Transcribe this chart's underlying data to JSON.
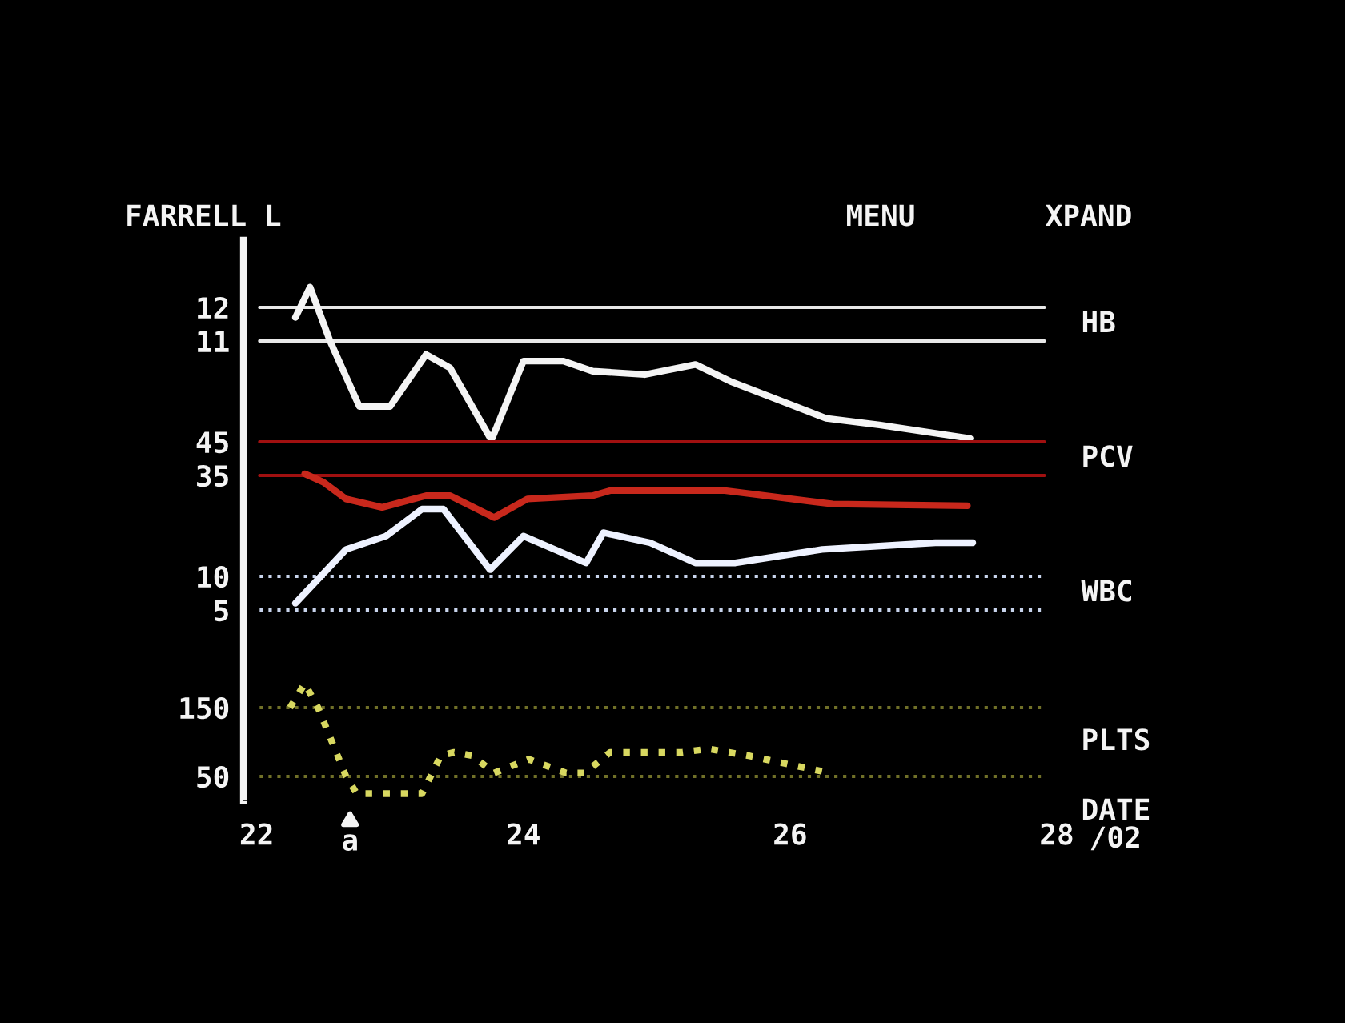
{
  "chart_data": [
    {
      "type": "line",
      "title": "FARRELL L",
      "annotations": [
        "MENU",
        "XPAND"
      ],
      "xlim": [
        21.9,
        28
      ],
      "tick_labels": "y",
      "ylim": [
        -2.67,
        14
      ],
      "yticks": [
        11,
        12
      ],
      "grid": false,
      "legend": false,
      "x": [
        22.29,
        22.4,
        22.55,
        22.77,
        23.0,
        23.27,
        23.45,
        23.76,
        24.0,
        24.3,
        24.52,
        24.91,
        25.29,
        25.55,
        26.27,
        26.67,
        27.35
      ],
      "series": [
        {
          "name": "HB",
          "color": "#f4f4f4",
          "values": [
            11.7,
            12.6,
            11.0,
            9.05,
            9.05,
            10.6,
            10.2,
            8.05,
            10.4,
            10.4,
            10.1,
            10.0,
            10.3,
            9.8,
            8.7,
            8.5,
            8.1
          ]
        }
      ],
      "ref_lines": [
        {
          "axis": "y",
          "value": 12,
          "color": "#e8e8e8"
        },
        {
          "axis": "y",
          "value": 11,
          "color": "#e8e8e8"
        }
      ]
    },
    {
      "type": "line",
      "xlim": [
        21.9,
        28
      ],
      "tick_labels": "y",
      "ylim": [
        -61.67,
        105
      ],
      "yticks": [
        35,
        45
      ],
      "grid": false,
      "legend": false,
      "x": [
        22.36,
        22.5,
        22.67,
        22.94,
        23.27,
        23.45,
        23.78,
        24.03,
        24.52,
        24.65,
        25.51,
        25.81,
        26.32,
        27.33
      ],
      "series": [
        {
          "name": "PCV",
          "color": "#c8281c",
          "values": [
            35.5,
            33,
            28,
            25.5,
            29,
            29,
            22.5,
            28,
            29,
            30.5,
            30.5,
            29,
            26.5,
            26
          ]
        }
      ],
      "ref_lines": [
        {
          "axis": "y",
          "value": 45,
          "color": "#a01010"
        },
        {
          "axis": "y",
          "value": 35,
          "color": "#a01010"
        }
      ]
    },
    {
      "type": "line",
      "xlim": [
        21.9,
        28
      ],
      "tick_labels": "y",
      "ylim": [
        -23.33,
        60
      ],
      "yticks": [
        5,
        10
      ],
      "grid": false,
      "legend": false,
      "x": [
        22.29,
        22.67,
        22.97,
        23.24,
        23.4,
        23.75,
        24.0,
        24.47,
        24.6,
        24.95,
        25.29,
        25.59,
        26.24,
        27.09,
        27.37
      ],
      "series": [
        {
          "name": "WBC",
          "color": "#eef2ff",
          "values": [
            6,
            14,
            16,
            20,
            20,
            11,
            16,
            12,
            16.5,
            15,
            12,
            12,
            14,
            15,
            15
          ]
        }
      ],
      "ref_lines": [
        {
          "axis": "y",
          "value": 10,
          "color": "#c8d4ec",
          "line_style": "dotted"
        },
        {
          "axis": "y",
          "value": 5,
          "color": "#c8d4ec",
          "line_style": "dotted"
        }
      ]
    },
    {
      "type": "line",
      "xlabel": "DATE",
      "annotations": [
        "/02",
        {
          "text": "a",
          "x": 22.7
        }
      ],
      "xlim": [
        21.9,
        28
      ],
      "xticks": [
        22,
        24,
        26,
        28
      ],
      "ylim": [
        15.1,
        829
      ],
      "yticks": [
        50,
        150
      ],
      "grid": false,
      "legend": false,
      "x": [
        22.25,
        22.36,
        22.46,
        22.67,
        22.75,
        22.98,
        23.24,
        23.38,
        23.48,
        23.62,
        23.78,
        24.04,
        24.32,
        24.46,
        24.65,
        25.19,
        25.39,
        25.69,
        25.93,
        26.3
      ],
      "series": [
        {
          "name": "PLTS",
          "color": "#d8d860",
          "line_style": "dotted",
          "values": [
            150,
            185,
            150,
            50,
            25,
            25,
            25,
            80,
            85,
            80,
            55,
            75,
            55,
            55,
            85,
            85,
            90,
            80,
            70,
            55
          ]
        }
      ],
      "ref_lines": [
        {
          "axis": "y",
          "value": 150,
          "color": "#707028",
          "line_style": "dotted"
        },
        {
          "axis": "y",
          "value": 50,
          "color": "#707028",
          "line_style": "dotted"
        }
      ]
    }
  ]
}
